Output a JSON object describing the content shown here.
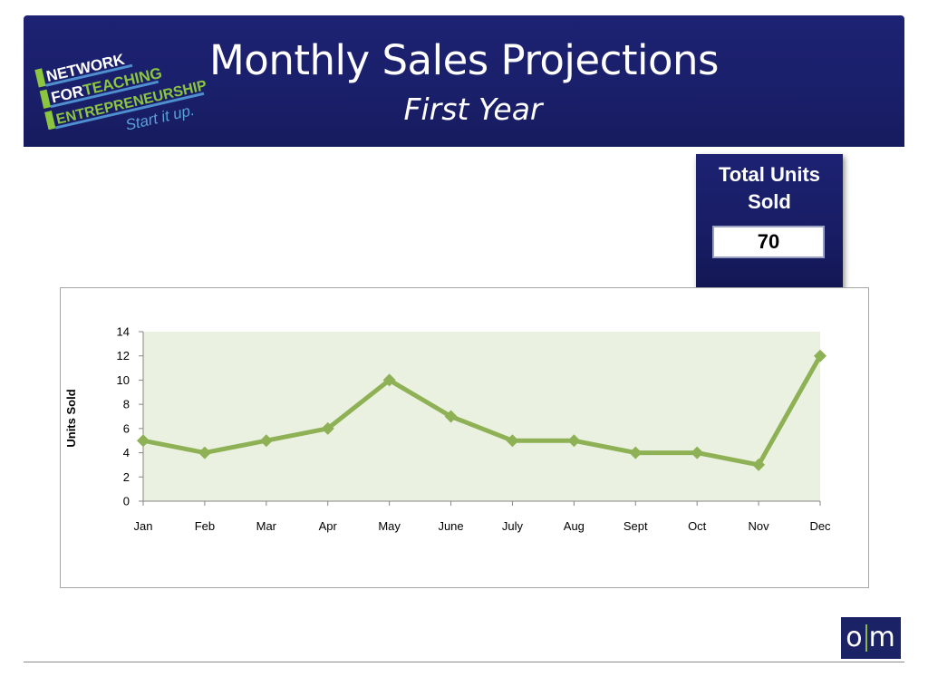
{
  "header": {
    "title": "Monthly Sales Projections",
    "subtitle": "First Year",
    "logo": {
      "lines": [
        "NETWORK",
        "FOR",
        "TEACHING",
        "ENTREPRENEURSHIP",
        "Start it up."
      ],
      "colors": {
        "white": "#ffffff",
        "green": "#8cc63f",
        "blue": "#5aa0d8"
      }
    }
  },
  "total": {
    "label": "Total Units Sold",
    "value": "70"
  },
  "chart_data": {
    "type": "line",
    "categories": [
      "Jan",
      "Feb",
      "Mar",
      "Apr",
      "May",
      "June",
      "July",
      "Aug",
      "Sept",
      "Oct",
      "Nov",
      "Dec"
    ],
    "values": [
      5,
      4,
      5,
      6,
      10,
      7,
      5,
      5,
      4,
      4,
      3,
      12
    ],
    "title": "",
    "xlabel": "",
    "ylabel": "Units Sold",
    "ylim": [
      0,
      14
    ],
    "yticks": [
      0,
      2,
      4,
      6,
      8,
      10,
      12,
      14
    ],
    "grid": false,
    "legend": "none",
    "colors": {
      "line": "#8db154",
      "plot_background": "#ebf1e0"
    }
  },
  "footer": {
    "om_logo": {
      "left": "o",
      "right": "m"
    }
  }
}
